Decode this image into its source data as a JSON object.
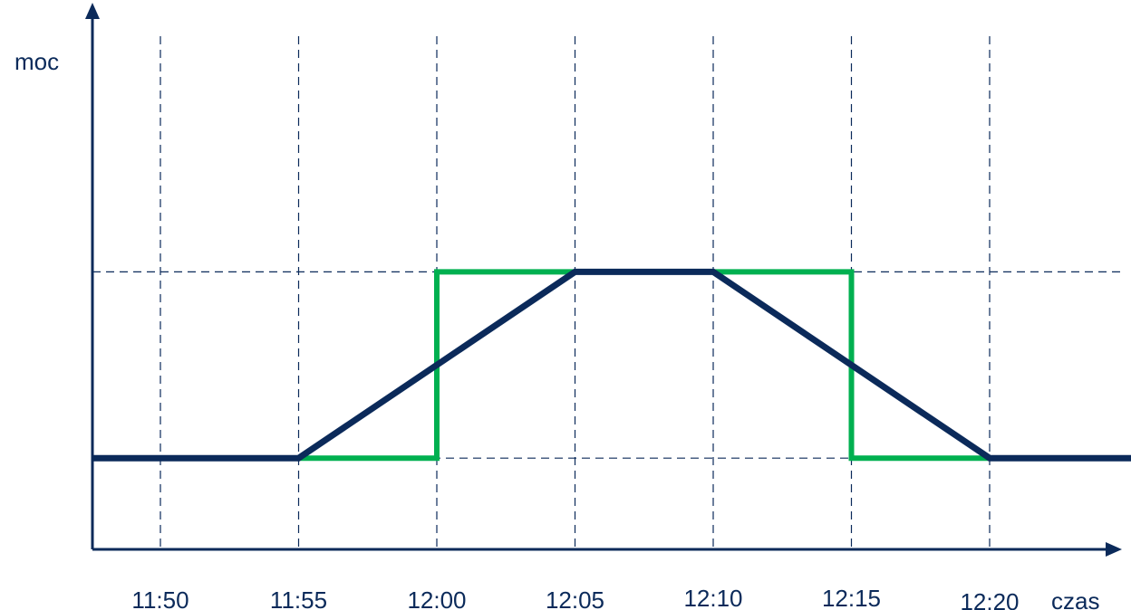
{
  "chart_data": {
    "type": "line",
    "title": "",
    "xlabel": "czas",
    "ylabel": "moc",
    "categories": [
      "11:50",
      "11:55",
      "12:00",
      "12:05",
      "12:10",
      "12:15",
      "12:20"
    ],
    "x_unit": "minutes relative to 11:50",
    "xlim": [
      -2.5,
      35.5
    ],
    "ylim": [
      0,
      1.16
    ],
    "y_levels": {
      "low": 0.24,
      "high": 0.73
    },
    "grid": true,
    "legend": "none",
    "series": [
      {
        "color": "#00b050",
        "points": [
          [
            5,
            0.24
          ],
          [
            10,
            0.24
          ],
          [
            10,
            0.73
          ],
          [
            25,
            0.73
          ],
          [
            25,
            0.24
          ],
          [
            30,
            0.24
          ]
        ]
      },
      {
        "color": "#0b2a5a",
        "points": [
          [
            -2.5,
            0.24
          ],
          [
            5,
            0.24
          ],
          [
            15,
            0.73
          ],
          [
            20,
            0.73
          ],
          [
            30,
            0.24
          ],
          [
            35.5,
            0.24
          ]
        ]
      }
    ]
  },
  "colors": {
    "axis": "#0b2a5a",
    "grid": "#0b2a5a",
    "step_series": "#00b050",
    "ramp_series": "#0b2a5a"
  }
}
